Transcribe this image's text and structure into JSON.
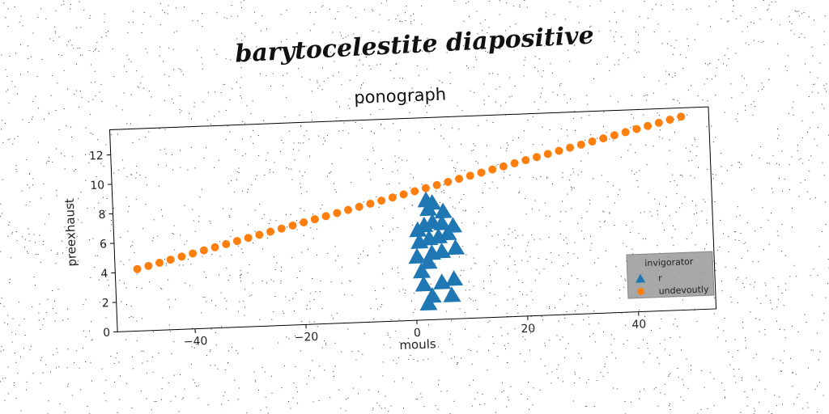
{
  "headline": "barytocelestite diapositive",
  "chart_data": {
    "type": "scatter",
    "title": "ponograph",
    "xlabel": "mouls",
    "ylabel": "preexhaust",
    "xlim": [
      -54,
      54
    ],
    "ylim": [
      0,
      13.7
    ],
    "xticks": [
      -40,
      -20,
      0,
      20,
      40
    ],
    "xtick_labels": [
      "−40",
      "−20",
      "0",
      "20",
      "40"
    ],
    "yticks": [
      0,
      2,
      4,
      6,
      8,
      10,
      12
    ],
    "ytick_labels": [
      "0",
      "2",
      "4",
      "6",
      "8",
      "10",
      "12"
    ],
    "grid": false,
    "legend": {
      "title": "invigorator",
      "placement": "lower-right",
      "entries": [
        "r",
        "undevoutly"
      ]
    },
    "series": [
      {
        "name": "r",
        "marker": "triangle",
        "color": "#1f77b4",
        "points": [
          [
            2.2,
            1.1
          ],
          [
            3.0,
            1.6
          ],
          [
            6.5,
            1.6
          ],
          [
            1.5,
            2.4
          ],
          [
            4.8,
            2.5
          ],
          [
            7.0,
            2.7
          ],
          [
            1.2,
            3.3
          ],
          [
            2.5,
            3.9
          ],
          [
            0.5,
            4.3
          ],
          [
            3.2,
            4.5
          ],
          [
            5.0,
            4.6
          ],
          [
            7.5,
            4.8
          ],
          [
            1.0,
            5.3
          ],
          [
            2.8,
            5.5
          ],
          [
            4.5,
            5.6
          ],
          [
            6.2,
            5.8
          ],
          [
            0.8,
            6.1
          ],
          [
            2.0,
            6.4
          ],
          [
            3.5,
            6.6
          ],
          [
            5.2,
            6.5
          ],
          [
            7.2,
            6.3
          ],
          [
            2.8,
            7.5
          ],
          [
            5.5,
            7.3
          ],
          [
            3.6,
            7.9
          ],
          [
            2.5,
            8.1
          ]
        ]
      },
      {
        "name": "undevoutly",
        "marker": "circle",
        "color": "#ff7f0e",
        "x_start": -50,
        "x_end": 49,
        "count": 50,
        "slope": 0.09,
        "intercept": 8.7
      }
    ]
  }
}
